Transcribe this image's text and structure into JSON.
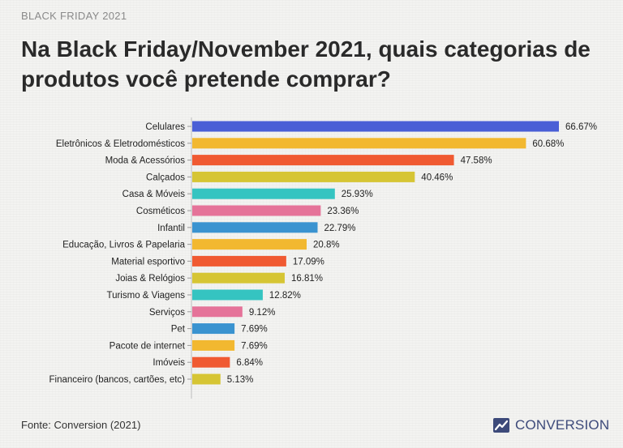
{
  "header": {
    "kicker": "BLACK FRIDAY 2021",
    "title": "Na Black Friday/November 2021, quais categorias de produtos você pretende comprar?"
  },
  "footer": {
    "source": "Fonte: Conversion (2021)",
    "brand": "CONVERSION",
    "brand_icon": "chart-line-icon",
    "brand_color": "#3d4a7a"
  },
  "chart_data": {
    "type": "bar",
    "orientation": "horizontal",
    "categories": [
      "Celulares",
      "Eletrônicos & Eletrodomésticos",
      "Moda & Acessórios",
      "Calçados",
      "Casa & Móveis",
      "Cosméticos",
      "Infantil",
      "Educação, Livros & Papelaria",
      "Material esportivo",
      "Joias & Relógios",
      "Turismo & Viagens",
      "Serviços",
      "Pet",
      "Pacote de internet",
      "Imóveis",
      "Financeiro (bancos, cartões, etc)"
    ],
    "values": [
      66.67,
      60.68,
      47.58,
      40.46,
      25.93,
      23.36,
      22.79,
      20.8,
      17.09,
      16.81,
      12.82,
      9.12,
      7.69,
      7.69,
      6.84,
      5.13
    ],
    "value_labels": [
      "66.67%",
      "60.68%",
      "47.58%",
      "40.46%",
      "25.93%",
      "23.36%",
      "22.79%",
      "20.8%",
      "17.09%",
      "16.81%",
      "12.82%",
      "9.12%",
      "7.69%",
      "7.69%",
      "6.84%",
      "5.13%"
    ],
    "colors": [
      "#4a5fd6",
      "#f2b830",
      "#f05a32",
      "#d6c534",
      "#35c4c1",
      "#e57399",
      "#3a93d0",
      "#f2b830",
      "#f05a32",
      "#d6c534",
      "#35c4c1",
      "#e57399",
      "#3a93d0",
      "#f2b830",
      "#f05a32",
      "#d6c534"
    ],
    "xlim": [
      0,
      66.67
    ],
    "grid": false,
    "title": "Na Black Friday/November 2021, quais categorias de produtos você pretende comprar?",
    "xlabel": "",
    "ylabel": ""
  }
}
